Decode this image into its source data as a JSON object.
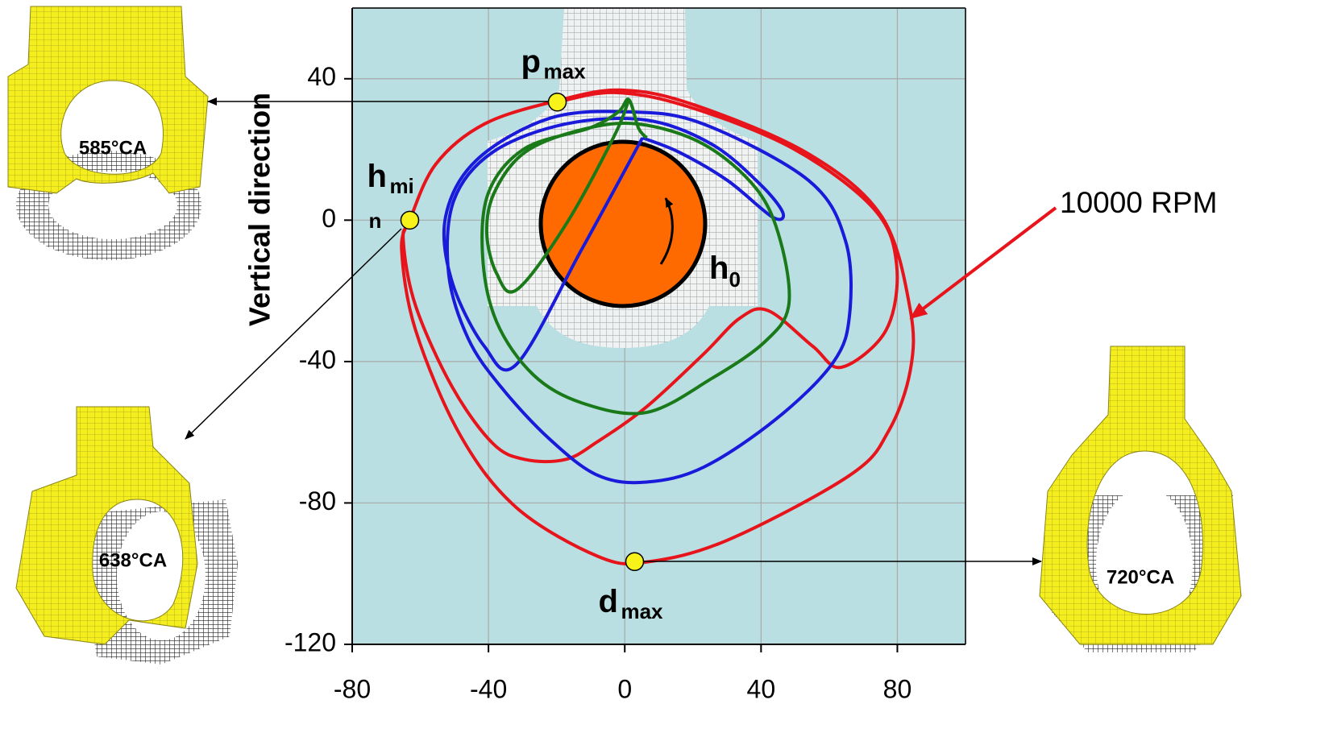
{
  "chart_data": {
    "type": "line",
    "ylabel": "Vertical direction",
    "xlim": [
      -80,
      100
    ],
    "ylim": [
      -120,
      60
    ],
    "xticks": [
      -80,
      -40,
      0,
      40,
      80
    ],
    "yticks": [
      -120,
      -80,
      -40,
      0,
      40
    ],
    "grid": true,
    "series": [
      {
        "color": "#e8141b",
        "x": [
          -19.8,
          -3.1,
          18.3,
          49.3,
          73.1,
          79.8,
          76.7,
          63.6,
          55.2,
          42.1,
          33.8,
          23.1,
          6.4,
          -7.9,
          -17.4,
          -29.3,
          -38.8,
          -50.7,
          -61.4,
          -65,
          -63.1,
          -55.5,
          -41.2,
          -19.8,
          -0.7,
          20.7,
          54,
          75.5,
          83.8,
          83.8,
          77.4,
          66,
          30.2,
          6.4,
          -7.9,
          -31.7,
          -48.3,
          -61.4,
          -65.5,
          -63.1
        ],
        "y": [
          33.4,
          36.1,
          32.2,
          20.3,
          3.2,
          -12.8,
          -31.1,
          -41.6,
          -35.7,
          -25.6,
          -27.7,
          -37.9,
          -52.8,
          -62.6,
          -67.7,
          -67.7,
          -63.1,
          -47.1,
          -24.2,
          -5.9,
          0,
          15.8,
          27.2,
          33.8,
          36.8,
          32.5,
          18.7,
          0.9,
          -25.4,
          -42.5,
          -59.7,
          -72.2,
          -90.5,
          -96.7,
          -95.1,
          -81.4,
          -60.8,
          -31.1,
          -8.2,
          0
        ]
      },
      {
        "color": "#1a1adb",
        "x": [
          5.2,
          -12.6,
          -31.7,
          -41.2,
          -50.7,
          -52.6,
          -43.6,
          -22.1,
          1.7,
          23.1,
          54,
          64.8,
          66,
          61.2,
          44.5,
          23.1,
          6.4,
          -7.9,
          -22.1,
          -36.4,
          -46,
          -51.7,
          -50.2,
          -38.8,
          -17.4,
          6.4,
          25.5,
          39.8,
          46.4,
          43.3,
          30.2,
          16,
          5.2
        ],
        "y": [
          23.3,
          -8.2,
          -40.7,
          -35.7,
          -17.4,
          0.9,
          16.9,
          28.8,
          30.6,
          27.2,
          11.2,
          -5.9,
          -26.5,
          -40.2,
          -56.2,
          -69.9,
          -74.1,
          -72.2,
          -61.9,
          -47.1,
          -33.4,
          -15.1,
          5.5,
          19.2,
          27.2,
          28.3,
          21.5,
          10.1,
          2.1,
          0.9,
          11.2,
          19.2,
          23.3
        ]
      },
      {
        "color": "#1a7a1a",
        "x": [
          1.2,
          -3.1,
          -17.4,
          -31.7,
          -37.6,
          -40.5,
          -38.3,
          -29.3,
          -12.6,
          4,
          23.1,
          38.6,
          45.7,
          48.1,
          41,
          25.5,
          6.4,
          -12.6,
          -26.9,
          -37.6,
          -41.7,
          -40,
          -29.3,
          -10.2,
          -1.9,
          1.2,
          4,
          6.4
        ],
        "y": [
          34.1,
          23.8,
          -1.4,
          -19.7,
          -15.1,
          -3.7,
          7.8,
          19.2,
          25.6,
          27.2,
          21.5,
          8.9,
          -5.9,
          -24.2,
          -34.5,
          -44.8,
          -54.4,
          -51.7,
          -43.7,
          -28.8,
          -10.5,
          7.8,
          20.3,
          26.1,
          30.6,
          34.1,
          26.1,
          23.3
        ]
      }
    ],
    "points": [
      {
        "label": "p",
        "sub": [
          "max"
        ],
        "x": -19.8,
        "y": 33.4
      },
      {
        "label": "h",
        "sub": [
          "mi",
          "n"
        ],
        "x": -63.1,
        "y": 0
      },
      {
        "label": "d",
        "sub": [
          "max"
        ],
        "x": 2.9,
        "y": -96.6
      }
    ],
    "journal_label": {
      "label": "h",
      "sub": "0"
    },
    "speed_label": "10000 RPM",
    "insets": [
      "585°CA",
      "638°CA",
      "720°CA"
    ]
  }
}
